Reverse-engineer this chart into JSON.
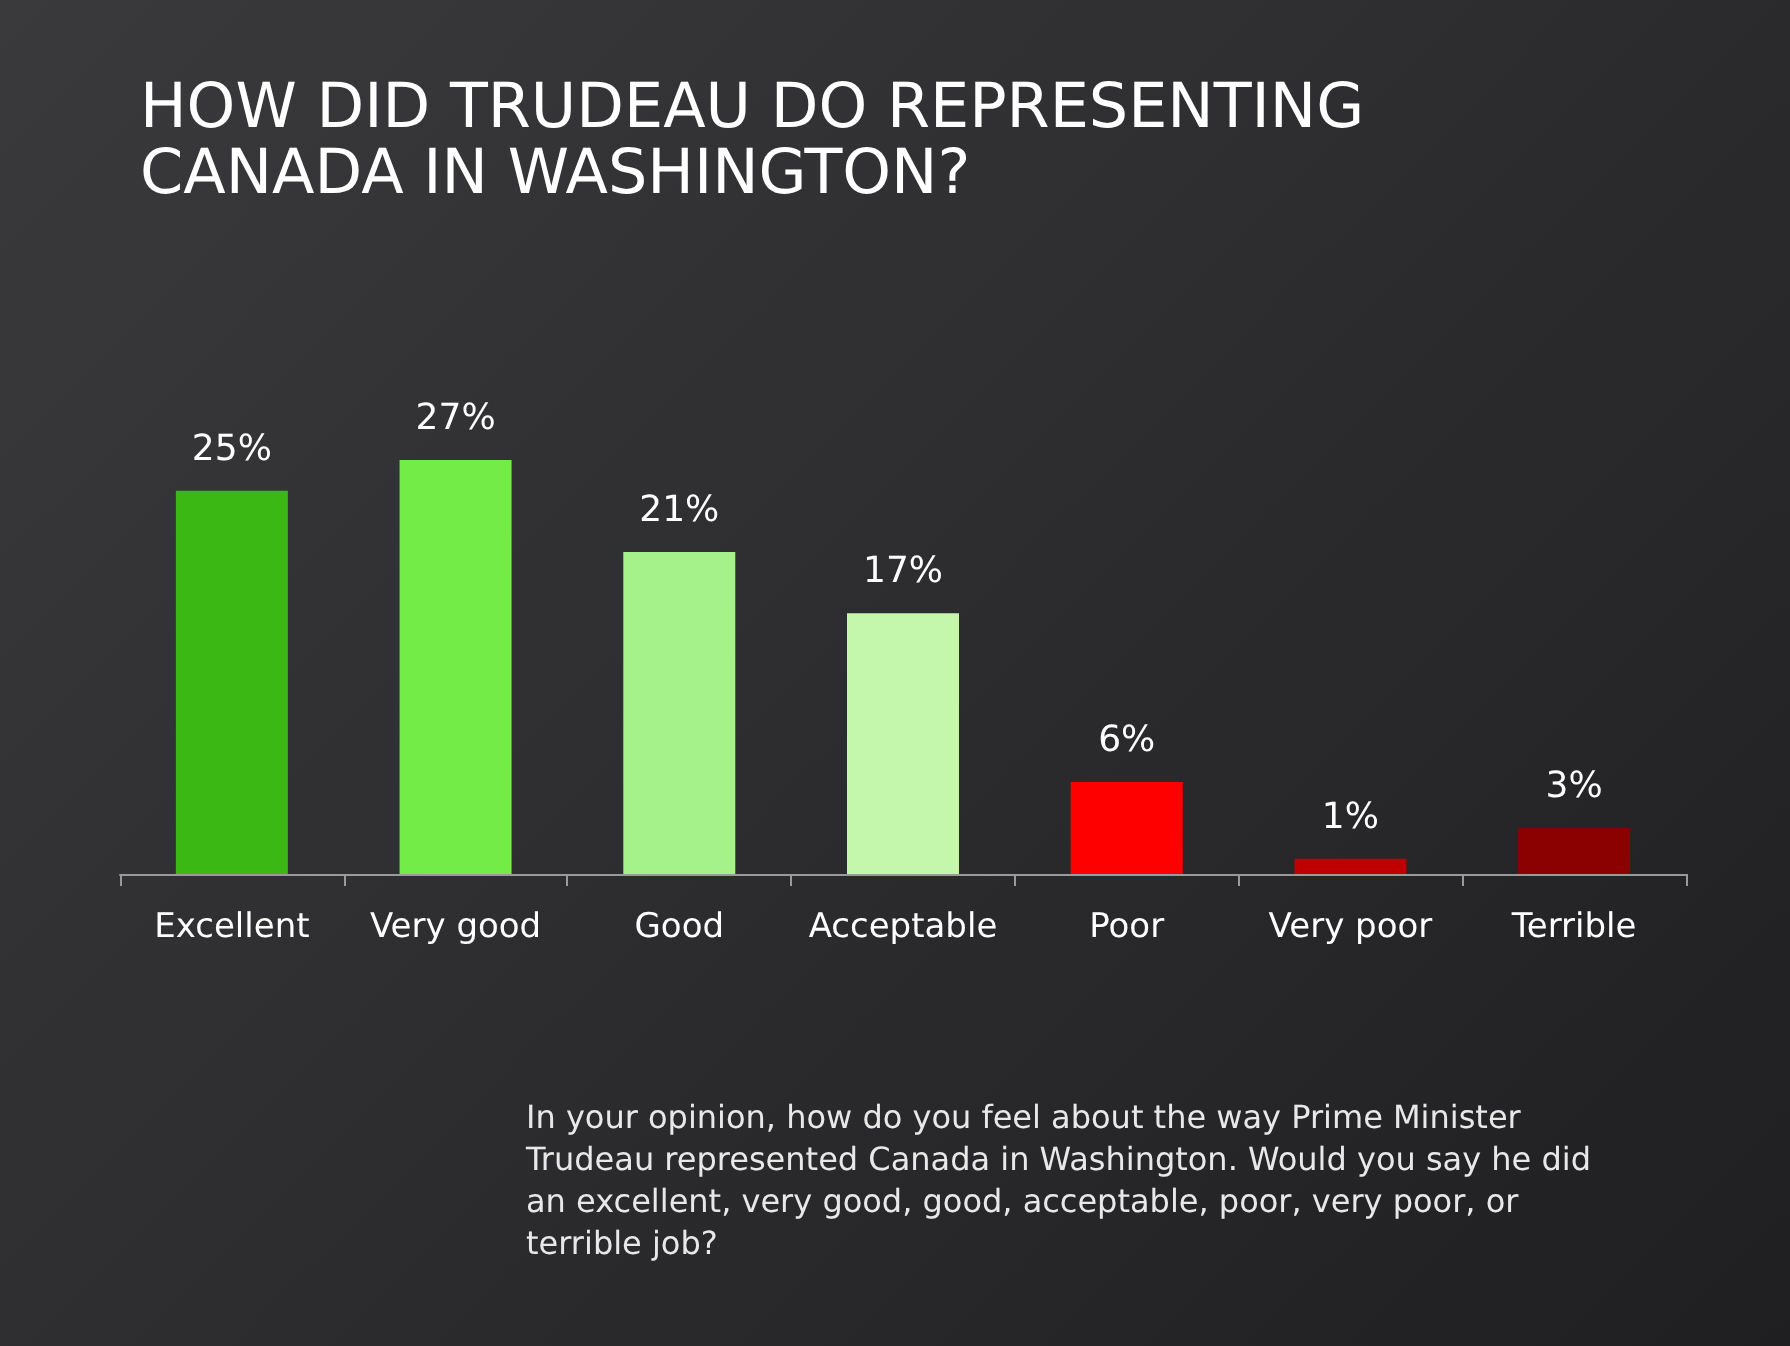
{
  "chart_data": {
    "type": "bar",
    "title": "HOW DID TRUDEAU DO REPRESENTING CANADA IN WASHINGTON?",
    "categories": [
      "Excellent",
      "Very good",
      "Good",
      "Acceptable",
      "Poor",
      "Very poor",
      "Terrible"
    ],
    "values": [
      25,
      27,
      21,
      17,
      6,
      1,
      3
    ],
    "value_labels": [
      "25%",
      "27%",
      "21%",
      "17%",
      "6%",
      "1%",
      "3%"
    ],
    "colors": [
      "#3cb815",
      "#74ec48",
      "#a6f28a",
      "#c4f6ab",
      "#ff0000",
      "#c00000",
      "#8b0000"
    ],
    "annotations": [
      "In your opinion, how do you feel about the way Prime Minister Trudeau represented Canada in Washington. Would you say he did an excellent, very good, good, acceptable, poor, very poor, or terrible job?"
    ]
  }
}
